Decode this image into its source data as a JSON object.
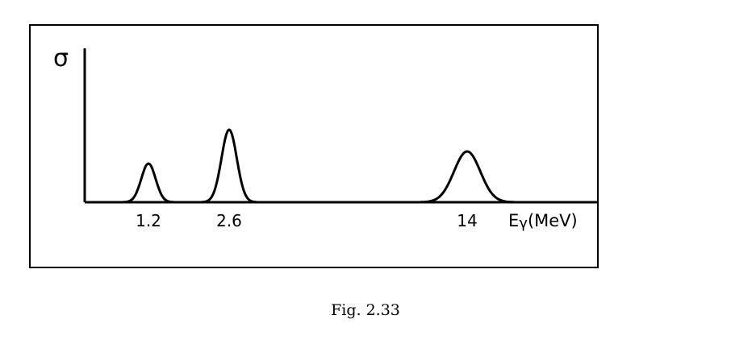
{
  "figure": {
    "caption": "Fig. 2.33"
  },
  "chart_data": {
    "type": "line",
    "ylabel": "σ",
    "xlabel_main": "E",
    "xlabel_sub": "γ",
    "xlabel_unit": "(MeV)",
    "peaks": [
      {
        "label": "1.2",
        "center": 1.2,
        "rel_height": 0.48,
        "width": 0.3
      },
      {
        "label": "2.6",
        "center": 2.6,
        "rel_height": 0.9,
        "width": 0.32
      },
      {
        "label": "14",
        "center": 14.0,
        "rel_height": 0.63,
        "width": 0.55
      }
    ],
    "colors": {
      "ink": "#000000"
    }
  }
}
